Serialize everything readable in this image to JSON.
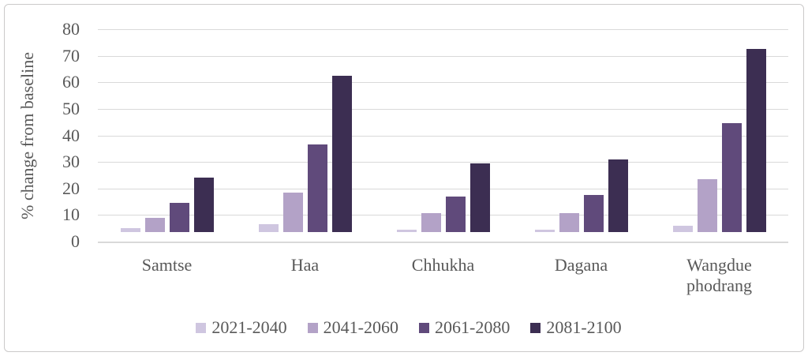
{
  "chart_data": {
    "type": "bar",
    "title": "",
    "xlabel": "",
    "ylabel": "% change from baseline",
    "ylim": [
      0,
      80
    ],
    "yticks": [
      0,
      10,
      20,
      30,
      40,
      50,
      60,
      70,
      80
    ],
    "grid": "horizontal",
    "legend_position": "bottom",
    "categories": [
      "Samtse",
      "Haa",
      "Chhukha",
      "Dagana",
      "Wangdue phodrang"
    ],
    "series": [
      {
        "name": "2021-2040",
        "color": "#cfc6e0",
        "values": [
          1.5,
          3,
          1,
          1,
          2.5
        ]
      },
      {
        "name": "2041-2060",
        "color": "#b3a2c7",
        "values": [
          5.5,
          15,
          7,
          7,
          20
        ]
      },
      {
        "name": "2061-2080",
        "color": "#604a7b",
        "values": [
          11,
          33,
          13.5,
          14,
          41
        ]
      },
      {
        "name": "2081-2100",
        "color": "#3c2e52",
        "values": [
          20.5,
          59,
          26,
          27.5,
          69
        ]
      }
    ],
    "colors": {
      "text": "#595959",
      "gridline": "#d9d9d9",
      "frame_border": "#cbc9c9",
      "background": "#ffffff"
    }
  }
}
